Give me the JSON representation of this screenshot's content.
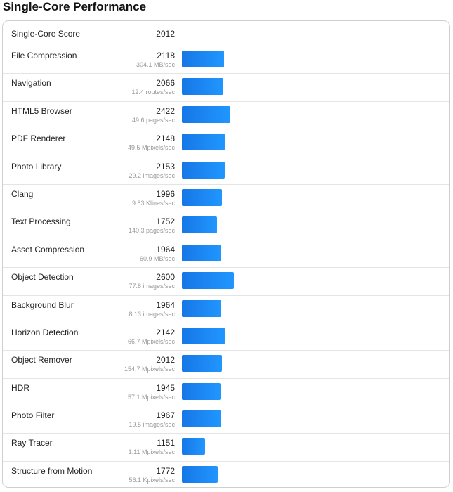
{
  "page": {
    "title": "Single-Core Performance"
  },
  "summary": {
    "label": "Single-Core Score",
    "score": "2012"
  },
  "colors": {
    "bar": "#1d86f2",
    "rate_text": "#9a9a9a"
  },
  "benchmarks": [
    {
      "name": "File Compression",
      "score": "2118",
      "rate": "304.1 MB/sec",
      "value": 2118
    },
    {
      "name": "Navigation",
      "score": "2066",
      "rate": "12.4 routes/sec",
      "value": 2066
    },
    {
      "name": "HTML5 Browser",
      "score": "2422",
      "rate": "49.6 pages/sec",
      "value": 2422
    },
    {
      "name": "PDF Renderer",
      "score": "2148",
      "rate": "49.5 Mpixels/sec",
      "value": 2148
    },
    {
      "name": "Photo Library",
      "score": "2153",
      "rate": "29.2 images/sec",
      "value": 2153
    },
    {
      "name": "Clang",
      "score": "1996",
      "rate": "9.83 Klines/sec",
      "value": 1996
    },
    {
      "name": "Text Processing",
      "score": "1752",
      "rate": "140.3 pages/sec",
      "value": 1752
    },
    {
      "name": "Asset Compression",
      "score": "1964",
      "rate": "60.9 MB/sec",
      "value": 1964
    },
    {
      "name": "Object Detection",
      "score": "2600",
      "rate": "77.8 images/sec",
      "value": 2600
    },
    {
      "name": "Background Blur",
      "score": "1964",
      "rate": "8.13 images/sec",
      "value": 1964
    },
    {
      "name": "Horizon Detection",
      "score": "2142",
      "rate": "66.7 Mpixels/sec",
      "value": 2142
    },
    {
      "name": "Object Remover",
      "score": "2012",
      "rate": "154.7 Mpixels/sec",
      "value": 2012
    },
    {
      "name": "HDR",
      "score": "1945",
      "rate": "57.1 Mpixels/sec",
      "value": 1945
    },
    {
      "name": "Photo Filter",
      "score": "1967",
      "rate": "19.5 images/sec",
      "value": 1967
    },
    {
      "name": "Ray Tracer",
      "score": "1151",
      "rate": "1.11 Mpixels/sec",
      "value": 1151
    },
    {
      "name": "Structure from Motion",
      "score": "1772",
      "rate": "56.1 Kpixels/sec",
      "value": 1772
    }
  ]
}
